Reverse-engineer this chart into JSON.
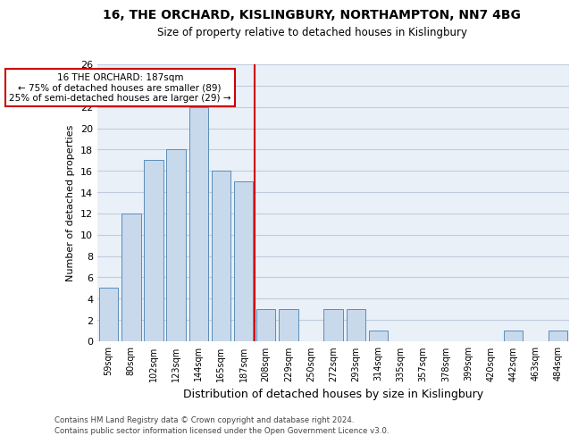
{
  "title1": "16, THE ORCHARD, KISLINGBURY, NORTHAMPTON, NN7 4BG",
  "title2": "Size of property relative to detached houses in Kislingbury",
  "xlabel": "Distribution of detached houses by size in Kislingbury",
  "ylabel": "Number of detached properties",
  "footer1": "Contains HM Land Registry data © Crown copyright and database right 2024.",
  "footer2": "Contains public sector information licensed under the Open Government Licence v3.0.",
  "categories": [
    "59sqm",
    "80sqm",
    "102sqm",
    "123sqm",
    "144sqm",
    "165sqm",
    "187sqm",
    "208sqm",
    "229sqm",
    "250sqm",
    "272sqm",
    "293sqm",
    "314sqm",
    "335sqm",
    "357sqm",
    "378sqm",
    "399sqm",
    "420sqm",
    "442sqm",
    "463sqm",
    "484sqm"
  ],
  "values": [
    5,
    12,
    17,
    18,
    22,
    16,
    15,
    3,
    3,
    0,
    3,
    3,
    1,
    0,
    0,
    0,
    0,
    0,
    1,
    0,
    1
  ],
  "bar_color": "#c8d9ec",
  "bar_edge_color": "#5b8db8",
  "red_line_index": 6,
  "annotation_title": "16 THE ORCHARD: 187sqm",
  "annotation_line1": "← 75% of detached houses are smaller (89)",
  "annotation_line2": "25% of semi-detached houses are larger (29) →",
  "annotation_box_color": "#ffffff",
  "annotation_box_edge_color": "#cc0000",
  "red_line_color": "#cc0000",
  "ylim": [
    0,
    26
  ],
  "yticks": [
    0,
    2,
    4,
    6,
    8,
    10,
    12,
    14,
    16,
    18,
    20,
    22,
    24,
    26
  ],
  "grid_color": "#c0ccdd",
  "bg_color": "#eaf0f8"
}
